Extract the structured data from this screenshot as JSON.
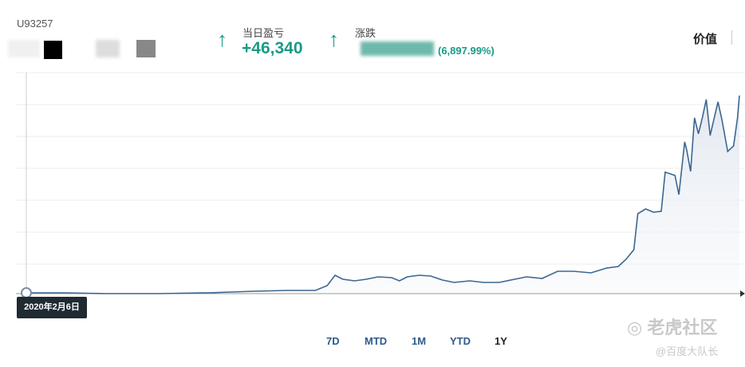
{
  "header": {
    "account": "U93257",
    "daily_pnl_label": "当日盈亏",
    "daily_pnl": "+46,340",
    "change_label": "涨跌",
    "change_pct": "(6,897.99%)",
    "value_tab": "价值"
  },
  "chart_data": {
    "type": "area",
    "color": "#3c6690",
    "x": [
      0,
      19,
      40,
      68,
      93,
      117,
      134,
      148,
      154,
      158,
      162,
      168,
      174,
      180,
      187,
      191,
      195,
      201,
      207,
      213,
      219,
      227,
      234,
      242,
      250,
      256,
      264,
      272,
      280,
      289,
      297,
      303,
      307,
      311,
      313,
      317,
      321,
      325,
      327,
      332,
      334,
      337,
      338,
      340,
      342,
      344,
      346,
      348,
      350,
      354,
      356,
      359,
      362,
      364,
      365
    ],
    "values": [
      0,
      0,
      -28,
      -28,
      0,
      56,
      84,
      84,
      251,
      614,
      475,
      419,
      475,
      559,
      531,
      419,
      559,
      614,
      586,
      447,
      363,
      419,
      363,
      363,
      475,
      559,
      503,
      754,
      754,
      698,
      866,
      922,
      1173,
      1508,
      2765,
      2933,
      2821,
      2849,
      4217,
      4105,
      3435,
      5279,
      5000,
      4245,
      6117,
      5559,
      6117,
      6759,
      5502,
      6675,
      6061,
      4944,
      5140,
      6117,
      6898
    ],
    "xlim": [
      0,
      365
    ],
    "ylim": [
      0,
      7700
    ],
    "start_date": "2020年2月6日",
    "ranges": [
      "7D",
      "MTD",
      "1M",
      "YTD",
      "1Y"
    ]
  },
  "watermark": {
    "brand": "老虎社区",
    "author": "@百度大队长"
  }
}
